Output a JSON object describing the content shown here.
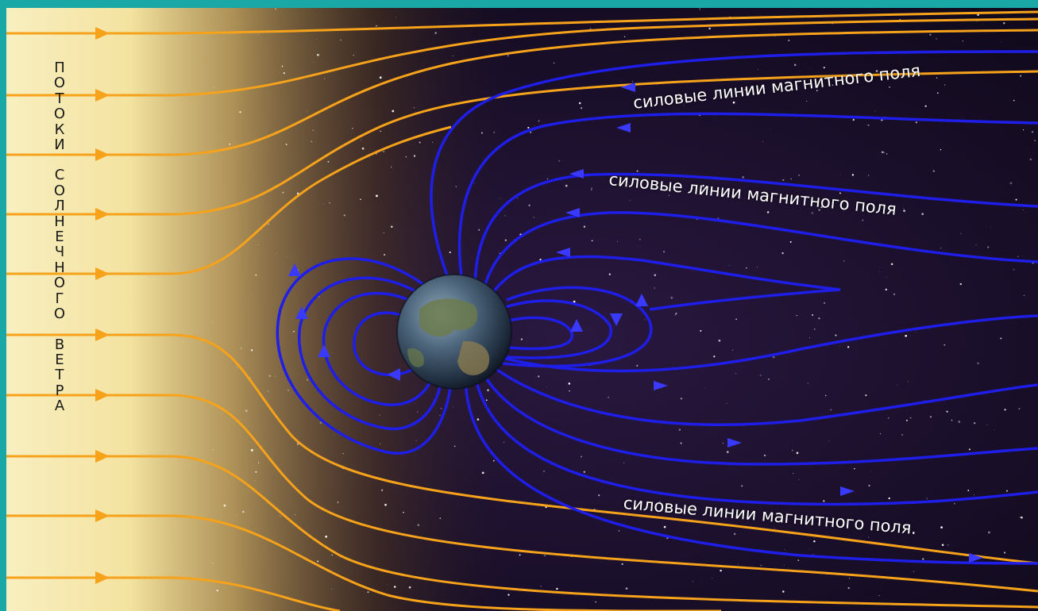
{
  "vertical_label": {
    "words": [
      "ПОТОКИ",
      "СОЛНЕЧНОГО",
      "ВЕТРА"
    ]
  },
  "field_labels": [
    "силовые линии магнитного поля",
    "силовые линии магнитного поля",
    "силовые линии магнитного поля."
  ],
  "colors": {
    "frame": "#1aa8a6",
    "solar_wind_lines": "#f6a21a",
    "field_lines": "#1e1ee8",
    "space": "#1a0f2a",
    "sun_glow": "#f4e7a0"
  }
}
